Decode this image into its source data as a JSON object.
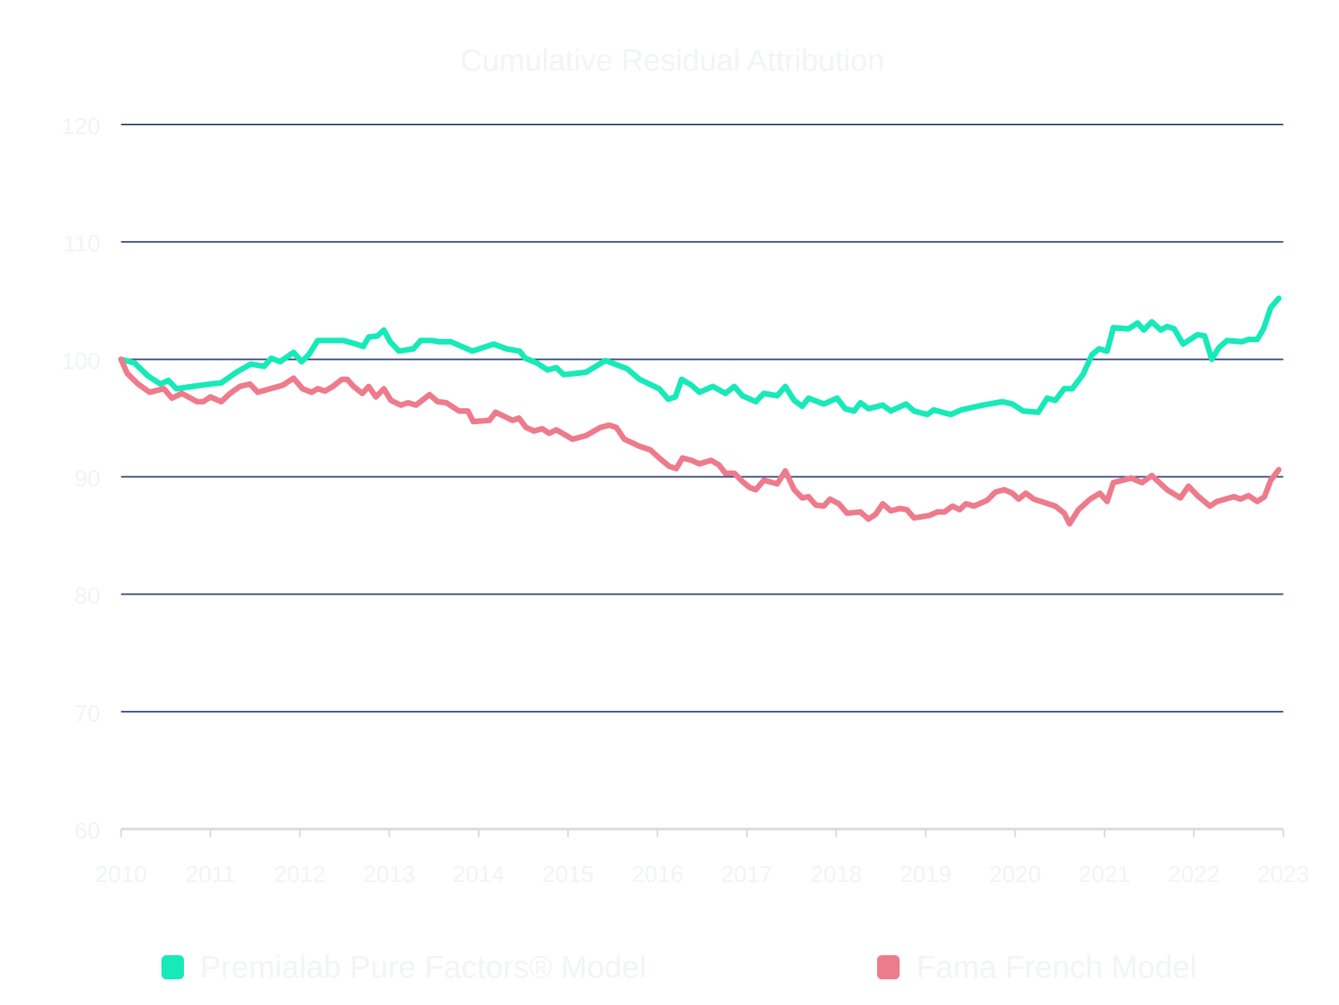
{
  "chart_data": {
    "type": "line",
    "title": "Cumulative Residual Attribution",
    "xlabel": "",
    "ylabel": "",
    "xlim": [
      2010,
      2023
    ],
    "ylim": [
      60,
      120
    ],
    "grid": true,
    "legend_position": "bottom",
    "x_ticks": [
      "2010",
      "2011",
      "2012",
      "2013",
      "2014",
      "2015",
      "2016",
      "2017",
      "2018",
      "2019",
      "2020",
      "2021",
      "2022",
      "2023"
    ],
    "y_ticks": [
      "120",
      "110",
      "100",
      "90",
      "80",
      "70",
      "60"
    ],
    "series": [
      {
        "name": "Premialab Pure Factors® Model",
        "color": "#17eab8",
        "x": [
          2010.0,
          2010.15,
          2010.3,
          2010.44,
          2010.53,
          2010.62,
          2010.8,
          2011.0,
          2011.12,
          2011.29,
          2011.45,
          2011.6,
          2011.68,
          2011.78,
          2011.93,
          2012.02,
          2012.1,
          2012.2,
          2012.49,
          2012.63,
          2012.71,
          2012.77,
          2012.87,
          2012.94,
          2013.01,
          2013.11,
          2013.27,
          2013.35,
          2013.48,
          2013.56,
          2013.69,
          2013.93,
          2014.17,
          2014.31,
          2014.46,
          2014.52,
          2014.65,
          2014.77,
          2014.87,
          2014.95,
          2015.08,
          2015.2,
          2015.42,
          2015.66,
          2015.8,
          2016.02,
          2016.12,
          2016.2,
          2016.27,
          2016.38,
          2016.47,
          2016.62,
          2016.76,
          2016.86,
          2016.95,
          2017.1,
          2017.19,
          2017.34,
          2017.43,
          2017.53,
          2017.62,
          2017.69,
          2017.86,
          2018.01,
          2018.1,
          2018.2,
          2018.27,
          2018.36,
          2018.52,
          2018.61,
          2018.78,
          2018.87,
          2019.02,
          2019.09,
          2019.28,
          2019.4,
          2019.64,
          2019.86,
          2019.97,
          2020.09,
          2020.26,
          2020.36,
          2020.45,
          2020.55,
          2020.64,
          2020.76,
          2020.86,
          2020.94,
          2021.03,
          2021.1,
          2021.27,
          2021.37,
          2021.44,
          2021.53,
          2021.63,
          2021.7,
          2021.78,
          2021.88,
          2022.04,
          2022.12,
          2022.2,
          2022.28,
          2022.37,
          2022.54,
          2022.61,
          2022.71,
          2022.78,
          2022.86,
          2022.95
        ],
        "values": [
          100.0,
          99.7,
          98.6,
          97.9,
          98.2,
          97.5,
          97.7,
          97.9,
          98.0,
          98.9,
          99.6,
          99.4,
          100.1,
          99.8,
          100.6,
          99.8,
          100.4,
          101.6,
          101.6,
          101.3,
          101.1,
          101.9,
          102.0,
          102.5,
          101.5,
          100.7,
          100.9,
          101.6,
          101.6,
          101.5,
          101.5,
          100.7,
          101.3,
          100.9,
          100.7,
          100.1,
          99.7,
          99.1,
          99.3,
          98.7,
          98.8,
          98.9,
          99.9,
          99.2,
          98.3,
          97.5,
          96.6,
          96.8,
          98.3,
          97.8,
          97.2,
          97.7,
          97.1,
          97.7,
          96.9,
          96.4,
          97.1,
          96.9,
          97.7,
          96.5,
          96.0,
          96.7,
          96.2,
          96.7,
          95.8,
          95.6,
          96.3,
          95.8,
          96.1,
          95.6,
          96.2,
          95.6,
          95.3,
          95.7,
          95.3,
          95.7,
          96.1,
          96.4,
          96.2,
          95.6,
          95.5,
          96.7,
          96.5,
          97.5,
          97.5,
          98.7,
          100.4,
          100.9,
          100.7,
          102.7,
          102.6,
          103.1,
          102.5,
          103.2,
          102.5,
          102.8,
          102.6,
          101.3,
          102.1,
          102.0,
          100.0,
          101.0,
          101.6,
          101.5,
          101.7,
          101.7,
          102.6,
          104.4,
          105.2
        ]
      },
      {
        "name": "Fama French Model",
        "color": "#ee7b8b",
        "x": [
          2010.0,
          2010.07,
          2010.19,
          2010.32,
          2010.48,
          2010.57,
          2010.68,
          2010.85,
          2010.92,
          2011.0,
          2011.12,
          2011.22,
          2011.33,
          2011.44,
          2011.53,
          2011.67,
          2011.81,
          2011.93,
          2012.03,
          2012.13,
          2012.2,
          2012.28,
          2012.37,
          2012.47,
          2012.53,
          2012.6,
          2012.7,
          2012.77,
          2012.85,
          2012.94,
          2013.02,
          2013.13,
          2013.21,
          2013.3,
          2013.45,
          2013.54,
          2013.64,
          2013.78,
          2013.88,
          2013.94,
          2014.12,
          2014.19,
          2014.38,
          2014.45,
          2014.53,
          2014.62,
          2014.71,
          2014.79,
          2014.87,
          2015.05,
          2015.2,
          2015.36,
          2015.46,
          2015.54,
          2015.63,
          2015.8,
          2015.92,
          2016.02,
          2016.13,
          2016.21,
          2016.28,
          2016.38,
          2016.47,
          2016.6,
          2016.69,
          2016.76,
          2016.86,
          2016.95,
          2017.03,
          2017.1,
          2017.19,
          2017.34,
          2017.43,
          2017.53,
          2017.62,
          2017.69,
          2017.77,
          2017.86,
          2017.93,
          2018.03,
          2018.12,
          2018.27,
          2018.36,
          2018.44,
          2018.52,
          2018.61,
          2018.71,
          2018.79,
          2018.87,
          2019.04,
          2019.13,
          2019.21,
          2019.3,
          2019.38,
          2019.45,
          2019.54,
          2019.69,
          2019.78,
          2019.88,
          2019.97,
          2020.04,
          2020.12,
          2020.21,
          2020.45,
          2020.55,
          2020.61,
          2020.71,
          2020.84,
          2020.95,
          2021.03,
          2021.1,
          2021.3,
          2021.42,
          2021.53,
          2021.7,
          2021.85,
          2021.94,
          2022.04,
          2022.18,
          2022.26,
          2022.45,
          2022.52,
          2022.61,
          2022.71,
          2022.79,
          2022.86,
          2022.95
        ],
        "values": [
          100.0,
          98.8,
          97.9,
          97.2,
          97.5,
          96.7,
          97.1,
          96.4,
          96.4,
          96.8,
          96.4,
          97.1,
          97.7,
          97.9,
          97.2,
          97.5,
          97.8,
          98.4,
          97.5,
          97.2,
          97.5,
          97.3,
          97.7,
          98.3,
          98.3,
          97.7,
          97.1,
          97.7,
          96.8,
          97.5,
          96.5,
          96.1,
          96.3,
          96.1,
          97.0,
          96.4,
          96.3,
          95.6,
          95.6,
          94.7,
          94.8,
          95.5,
          94.8,
          95.0,
          94.2,
          93.9,
          94.1,
          93.7,
          94.0,
          93.2,
          93.5,
          94.2,
          94.4,
          94.2,
          93.2,
          92.6,
          92.3,
          91.6,
          90.9,
          90.7,
          91.6,
          91.4,
          91.1,
          91.4,
          91.0,
          90.3,
          90.3,
          89.6,
          89.1,
          88.9,
          89.7,
          89.4,
          90.5,
          88.9,
          88.2,
          88.3,
          87.6,
          87.5,
          88.1,
          87.7,
          86.9,
          87.0,
          86.4,
          86.8,
          87.7,
          87.1,
          87.3,
          87.2,
          86.5,
          86.7,
          87.0,
          87.0,
          87.5,
          87.2,
          87.7,
          87.5,
          88.0,
          88.7,
          88.9,
          88.6,
          88.1,
          88.6,
          88.1,
          87.5,
          86.9,
          86.0,
          87.2,
          88.1,
          88.6,
          87.9,
          89.5,
          89.9,
          89.5,
          90.1,
          88.9,
          88.2,
          89.2,
          88.4,
          87.5,
          87.9,
          88.3,
          88.1,
          88.4,
          87.9,
          88.3,
          89.7,
          90.6
        ]
      }
    ]
  }
}
